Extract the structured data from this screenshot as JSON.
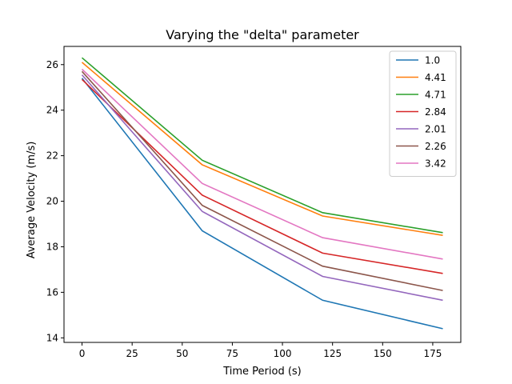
{
  "chart_data": {
    "type": "line",
    "title": "Varying the \"delta\" parameter",
    "xlabel": "Time Period (s)",
    "ylabel": "Average Velocity (m/s)",
    "x": [
      0,
      60,
      120,
      180
    ],
    "xlim": [
      -9,
      189
    ],
    "ylim": [
      13.8,
      26.8
    ],
    "xticks": [
      0,
      25,
      50,
      75,
      100,
      125,
      150,
      175
    ],
    "yticks": [
      14,
      16,
      18,
      20,
      22,
      24,
      26
    ],
    "grid": false,
    "legend_position": "top-right",
    "series": [
      {
        "name": "1.0",
        "color": "#1f77b4",
        "values": [
          25.4,
          18.7,
          15.65,
          14.4
        ]
      },
      {
        "name": "4.41",
        "color": "#ff7f0e",
        "values": [
          26.1,
          21.6,
          19.35,
          18.5
        ]
      },
      {
        "name": "4.71",
        "color": "#2ca02c",
        "values": [
          26.3,
          21.8,
          19.5,
          18.62
        ]
      },
      {
        "name": "2.84",
        "color": "#d62728",
        "values": [
          25.35,
          20.27,
          17.72,
          16.83
        ]
      },
      {
        "name": "2.01",
        "color": "#9467bd",
        "values": [
          25.55,
          19.55,
          16.7,
          15.65
        ]
      },
      {
        "name": "2.26",
        "color": "#8c564b",
        "values": [
          25.7,
          19.82,
          17.15,
          16.08
        ]
      },
      {
        "name": "3.42",
        "color": "#e377c2",
        "values": [
          25.8,
          20.78,
          18.4,
          17.46
        ]
      }
    ]
  }
}
